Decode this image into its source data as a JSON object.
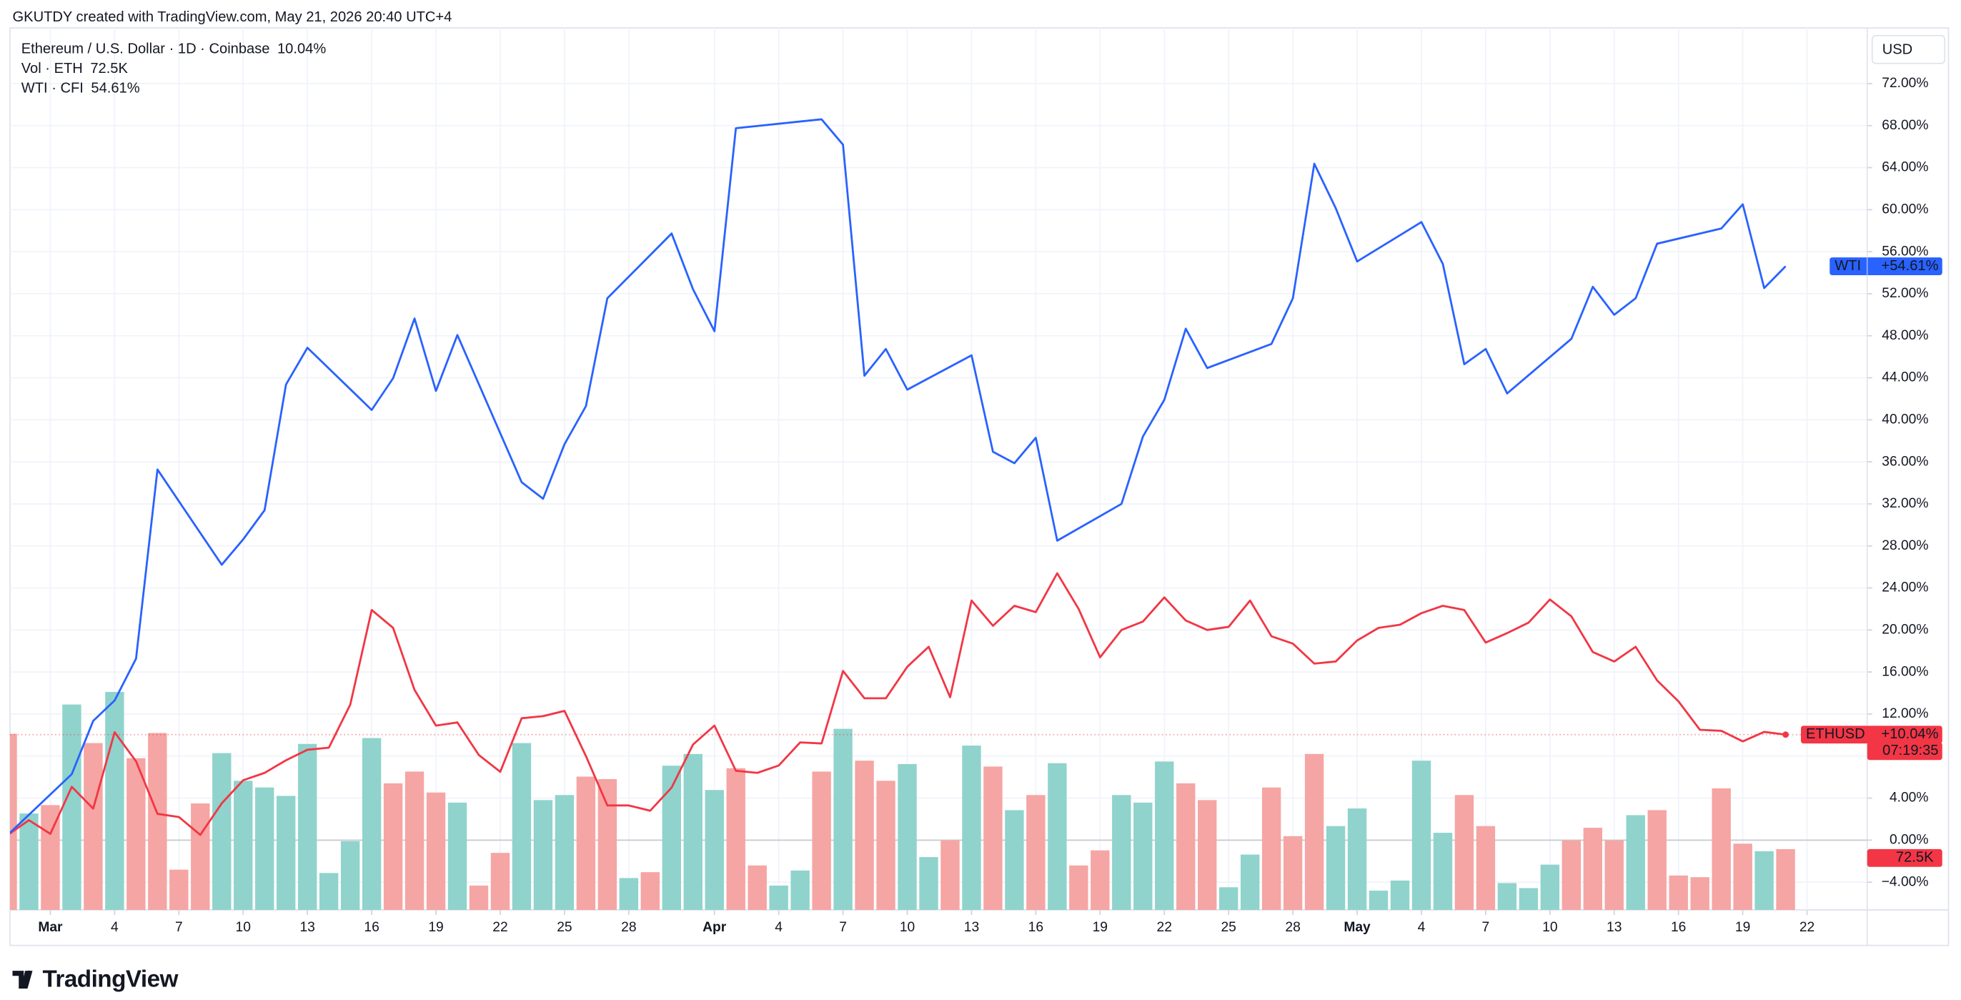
{
  "chart_data": {
    "type": "line",
    "title": "GKUTDY created with TradingView.com, May 21, 2026 20:40 UTC+4",
    "currency": "USD",
    "brand": "TradingView",
    "x": [
      "2026-02-27",
      "2026-02-28",
      "2026-03-01",
      "2026-03-02",
      "2026-03-03",
      "2026-03-04",
      "2026-03-05",
      "2026-03-06",
      "2026-03-07",
      "2026-03-08",
      "2026-03-09",
      "2026-03-10",
      "2026-03-11",
      "2026-03-12",
      "2026-03-13",
      "2026-03-14",
      "2026-03-15",
      "2026-03-16",
      "2026-03-17",
      "2026-03-18",
      "2026-03-19",
      "2026-03-20",
      "2026-03-21",
      "2026-03-22",
      "2026-03-23",
      "2026-03-24",
      "2026-03-25",
      "2026-03-26",
      "2026-03-27",
      "2026-03-28",
      "2026-03-29",
      "2026-03-30",
      "2026-03-31",
      "2026-04-01",
      "2026-04-02",
      "2026-04-03",
      "2026-04-04",
      "2026-04-05",
      "2026-04-06",
      "2026-04-07",
      "2026-04-08",
      "2026-04-09",
      "2026-04-10",
      "2026-04-11",
      "2026-04-12",
      "2026-04-13",
      "2026-04-14",
      "2026-04-15",
      "2026-04-16",
      "2026-04-17",
      "2026-04-18",
      "2026-04-19",
      "2026-04-20",
      "2026-04-21",
      "2026-04-22",
      "2026-04-23",
      "2026-04-24",
      "2026-04-25",
      "2026-04-26",
      "2026-04-27",
      "2026-04-28",
      "2026-04-29",
      "2026-04-30",
      "2026-05-01",
      "2026-05-02",
      "2026-05-03",
      "2026-05-04",
      "2026-05-05",
      "2026-05-06",
      "2026-05-07",
      "2026-05-08",
      "2026-05-09",
      "2026-05-10",
      "2026-05-11",
      "2026-05-12",
      "2026-05-13",
      "2026-05-14",
      "2026-05-15",
      "2026-05-16",
      "2026-05-17",
      "2026-05-18",
      "2026-05-19",
      "2026-05-20",
      "2026-05-21"
    ],
    "xlim": [
      "2026-02-27",
      "2026-05-24T18:00"
    ],
    "xticks": [
      {
        "value": "2026-03-01",
        "label": "Mar"
      },
      {
        "value": "2026-03-04",
        "label": "4"
      },
      {
        "value": "2026-03-07",
        "label": "7"
      },
      {
        "value": "2026-03-10",
        "label": "10"
      },
      {
        "value": "2026-03-13",
        "label": "13"
      },
      {
        "value": "2026-03-16",
        "label": "16"
      },
      {
        "value": "2026-03-19",
        "label": "19"
      },
      {
        "value": "2026-03-22",
        "label": "22"
      },
      {
        "value": "2026-03-25",
        "label": "25"
      },
      {
        "value": "2026-03-28",
        "label": "28"
      },
      {
        "value": "2026-04-01",
        "label": "Apr"
      },
      {
        "value": "2026-04-04",
        "label": "4"
      },
      {
        "value": "2026-04-07",
        "label": "7"
      },
      {
        "value": "2026-04-10",
        "label": "10"
      },
      {
        "value": "2026-04-13",
        "label": "13"
      },
      {
        "value": "2026-04-16",
        "label": "16"
      },
      {
        "value": "2026-04-19",
        "label": "19"
      },
      {
        "value": "2026-04-22",
        "label": "22"
      },
      {
        "value": "2026-04-25",
        "label": "25"
      },
      {
        "value": "2026-04-28",
        "label": "28"
      },
      {
        "value": "2026-05-01",
        "label": "May"
      },
      {
        "value": "2026-05-04",
        "label": "4"
      },
      {
        "value": "2026-05-07",
        "label": "7"
      },
      {
        "value": "2026-05-10",
        "label": "10"
      },
      {
        "value": "2026-05-13",
        "label": "13"
      },
      {
        "value": "2026-05-16",
        "label": "16"
      },
      {
        "value": "2026-05-19",
        "label": "19"
      },
      {
        "value": "2026-05-22",
        "label": "22"
      }
    ],
    "ylim": [
      -6.64,
      76.33
    ],
    "yticks": [
      {
        "value": -4,
        "label": "−4.00%"
      },
      {
        "value": 0,
        "label": "0.00%"
      },
      {
        "value": 4,
        "label": "4.00%"
      },
      {
        "value": 8,
        "label": "8.00%"
      },
      {
        "value": 12,
        "label": "12.00%"
      },
      {
        "value": 16,
        "label": "16.00%"
      },
      {
        "value": 20,
        "label": "20.00%"
      },
      {
        "value": 24,
        "label": "24.00%"
      },
      {
        "value": 28,
        "label": "28.00%"
      },
      {
        "value": 32,
        "label": "32.00%"
      },
      {
        "value": 36,
        "label": "36.00%"
      },
      {
        "value": 40,
        "label": "40.00%"
      },
      {
        "value": 44,
        "label": "44.00%"
      },
      {
        "value": 48,
        "label": "48.00%"
      },
      {
        "value": 52,
        "label": "52.00%"
      },
      {
        "value": 56,
        "label": "56.00%"
      },
      {
        "value": 60,
        "label": "60.00%"
      },
      {
        "value": 64,
        "label": "64.00%"
      },
      {
        "value": 68,
        "label": "68.00%"
      },
      {
        "value": 72,
        "label": "72.00%"
      }
    ],
    "y2lim": [
      0,
      1040000
    ],
    "grid": true,
    "series": [
      {
        "name": "Ethereum / U.S. Dollar · 1D · Coinbase",
        "tag": "ETHUSD",
        "color": "#f23645",
        "legend_value": "10.04%",
        "price_label": "+10.04%",
        "countdown": "07:19:35",
        "values": [
          0.48,
          1.9,
          0.6,
          5.07,
          3.0,
          10.27,
          7.5,
          2.5,
          2.2,
          0.5,
          3.5,
          5.7,
          6.4,
          7.6,
          8.6,
          8.8,
          12.9,
          21.9,
          20.2,
          14.3,
          10.9,
          11.2,
          8.1,
          6.5,
          11.6,
          11.8,
          12.3,
          8.0,
          3.3,
          3.3,
          2.8,
          5.0,
          9.1,
          10.9,
          6.6,
          6.4,
          7.1,
          9.3,
          9.2,
          16.1,
          13.5,
          13.5,
          16.5,
          18.4,
          13.6,
          22.8,
          20.4,
          22.3,
          21.7,
          25.4,
          22.0,
          17.4,
          20.0,
          20.8,
          23.1,
          20.9,
          20.0,
          20.3,
          22.8,
          19.4,
          18.7,
          16.8,
          17.0,
          19.0,
          20.2,
          20.5,
          21.6,
          22.3,
          21.9,
          18.8,
          19.7,
          20.7,
          22.9,
          21.3,
          17.9,
          17.0,
          18.4,
          15.2,
          13.2,
          10.5,
          10.4,
          9.4,
          10.3,
          10.04
        ]
      },
      {
        "name": "Vol · ETH",
        "type": "bar",
        "axis": "y2",
        "color": "#f23645",
        "legend_value": "72.5K",
        "price_label": "72.5K",
        "values": [
          210000,
          115000,
          125000,
          245000,
          199000,
          260000,
          181000,
          211000,
          48000,
          127000,
          187000,
          154000,
          146000,
          136000,
          198000,
          44000,
          82000,
          205000,
          151000,
          165000,
          140000,
          128000,
          29000,
          68000,
          199000,
          131000,
          137000,
          159000,
          156000,
          38000,
          45000,
          172000,
          186000,
          143000,
          169000,
          53000,
          29000,
          47000,
          165000,
          216000,
          178000,
          154000,
          174000,
          63000,
          83000,
          196000,
          171000,
          119000,
          137000,
          175000,
          53000,
          71000,
          137000,
          128000,
          177000,
          151000,
          131000,
          27000,
          66000,
          146000,
          88000,
          186000,
          100000,
          121000,
          23000,
          35000,
          178000,
          92000,
          137000,
          100000,
          32000,
          26000,
          54000,
          83000,
          98000,
          83000,
          113000,
          119000,
          41000,
          39000,
          145000,
          79000,
          70000,
          72500
        ],
        "colors": [
          "#f5a5a3",
          "#8fd3cc",
          "#f5a5a3",
          "#8fd3cc",
          "#f5a5a3",
          "#8fd3cc",
          "#f5a5a3",
          "#f5a5a3",
          "#f5a5a3",
          "#f5a5a3",
          "#8fd3cc",
          "#8fd3cc",
          "#8fd3cc",
          "#8fd3cc",
          "#8fd3cc",
          "#8fd3cc",
          "#8fd3cc",
          "#8fd3cc",
          "#f5a5a3",
          "#f5a5a3",
          "#f5a5a3",
          "#8fd3cc",
          "#f5a5a3",
          "#f5a5a3",
          "#8fd3cc",
          "#8fd3cc",
          "#8fd3cc",
          "#f5a5a3",
          "#f5a5a3",
          "#8fd3cc",
          "#f5a5a3",
          "#8fd3cc",
          "#8fd3cc",
          "#8fd3cc",
          "#f5a5a3",
          "#f5a5a3",
          "#8fd3cc",
          "#8fd3cc",
          "#f5a5a3",
          "#8fd3cc",
          "#f5a5a3",
          "#f5a5a3",
          "#8fd3cc",
          "#8fd3cc",
          "#f5a5a3",
          "#8fd3cc",
          "#f5a5a3",
          "#8fd3cc",
          "#f5a5a3",
          "#8fd3cc",
          "#f5a5a3",
          "#f5a5a3",
          "#8fd3cc",
          "#8fd3cc",
          "#8fd3cc",
          "#f5a5a3",
          "#f5a5a3",
          "#8fd3cc",
          "#8fd3cc",
          "#f5a5a3",
          "#f5a5a3",
          "#f5a5a3",
          "#8fd3cc",
          "#8fd3cc",
          "#8fd3cc",
          "#8fd3cc",
          "#8fd3cc",
          "#8fd3cc",
          "#f5a5a3",
          "#f5a5a3",
          "#8fd3cc",
          "#8fd3cc",
          "#8fd3cc",
          "#f5a5a3",
          "#f5a5a3",
          "#f5a5a3",
          "#8fd3cc",
          "#f5a5a3",
          "#f5a5a3",
          "#f5a5a3",
          "#f5a5a3",
          "#f5a5a3",
          "#8fd3cc",
          "#f5a5a3"
        ]
      },
      {
        "name": "WTI · CFI",
        "tag": "WTI",
        "color": "#2962ff",
        "legend_value": "54.61%",
        "price_label": "+54.61%",
        "x": [
          "2026-02-27",
          "2026-03-02",
          "2026-03-03",
          "2026-03-04",
          "2026-03-05",
          "2026-03-06",
          "2026-03-09",
          "2026-03-10",
          "2026-03-11",
          "2026-03-12",
          "2026-03-13",
          "2026-03-16",
          "2026-03-17",
          "2026-03-18",
          "2026-03-19",
          "2026-03-20",
          "2026-03-23",
          "2026-03-24",
          "2026-03-25",
          "2026-03-26",
          "2026-03-27",
          "2026-03-30",
          "2026-03-31",
          "2026-04-01",
          "2026-04-02",
          "2026-04-06",
          "2026-04-07",
          "2026-04-08",
          "2026-04-09",
          "2026-04-10",
          "2026-04-13",
          "2026-04-14",
          "2026-04-15",
          "2026-04-16",
          "2026-04-17",
          "2026-04-20",
          "2026-04-21",
          "2026-04-22",
          "2026-04-23",
          "2026-04-24",
          "2026-04-27",
          "2026-04-28",
          "2026-04-29",
          "2026-04-30",
          "2026-05-01",
          "2026-05-04",
          "2026-05-05",
          "2026-05-06",
          "2026-05-07",
          "2026-05-08",
          "2026-05-11",
          "2026-05-12",
          "2026-05-13",
          "2026-05-14",
          "2026-05-15",
          "2026-05-18",
          "2026-05-19",
          "2026-05-20",
          "2026-05-21"
        ],
        "values": [
          0.48,
          6.28,
          11.35,
          13.29,
          17.27,
          35.27,
          26.21,
          28.62,
          31.4,
          43.36,
          46.86,
          40.94,
          43.96,
          49.64,
          42.75,
          48.07,
          34.06,
          32.49,
          37.68,
          41.3,
          51.57,
          57.73,
          52.42,
          48.43,
          67.75,
          68.6,
          66.18,
          44.2,
          46.74,
          42.87,
          46.14,
          36.96,
          35.87,
          38.29,
          28.5,
          32.0,
          38.41,
          41.91,
          48.67,
          44.93,
          47.22,
          51.57,
          64.37,
          60.14,
          55.07,
          58.82,
          54.83,
          45.29,
          46.74,
          42.51,
          47.71,
          52.66,
          50.0,
          51.57,
          56.76,
          58.21,
          60.51,
          52.54,
          54.61
        ]
      }
    ]
  }
}
